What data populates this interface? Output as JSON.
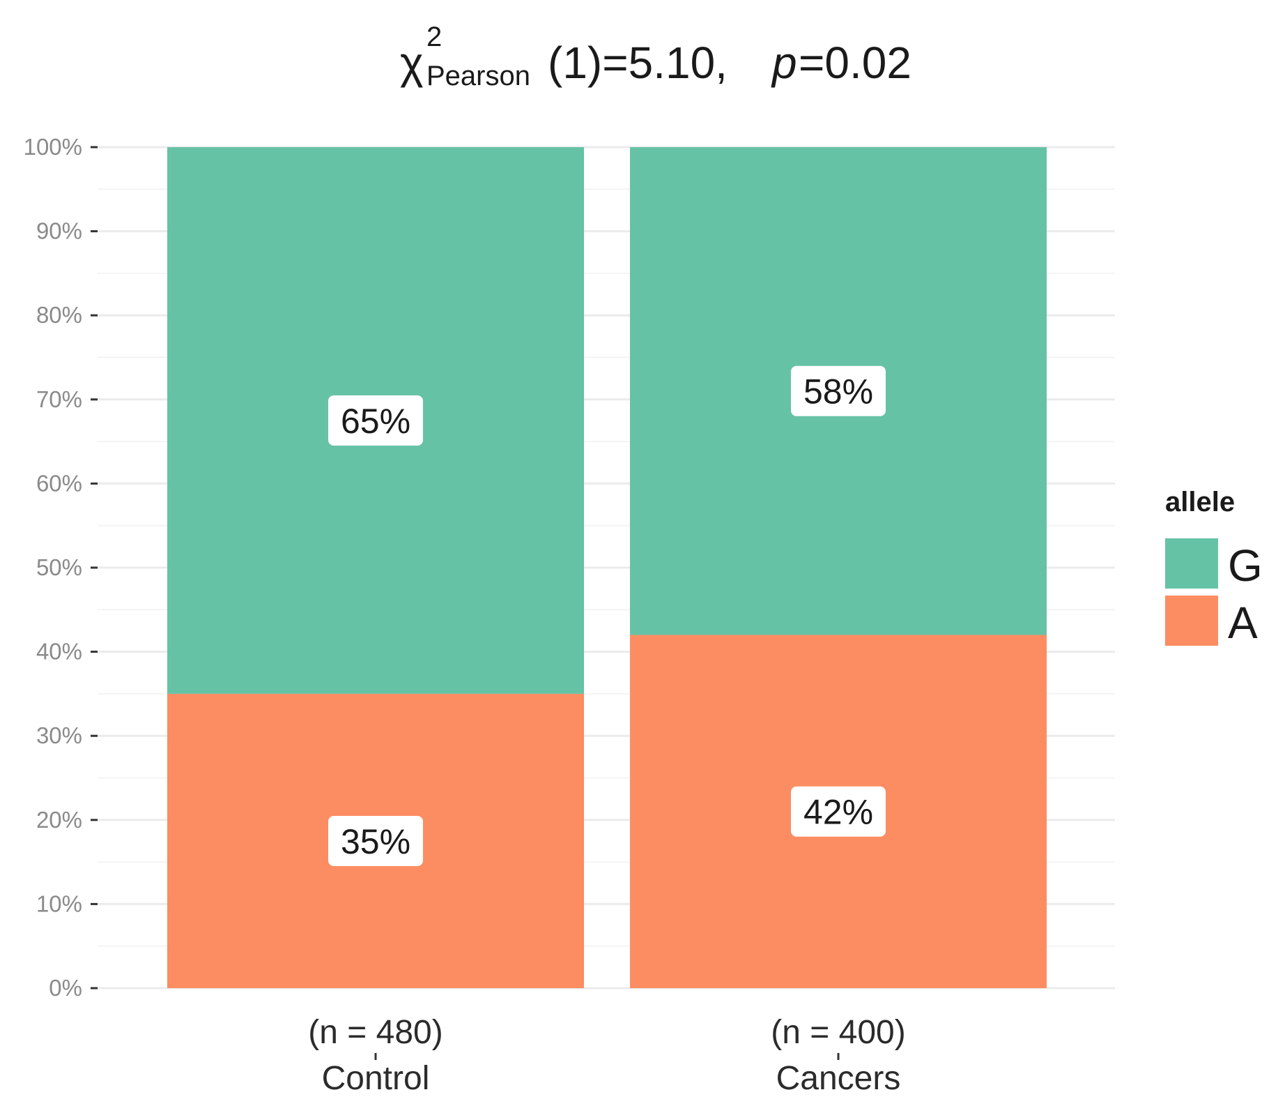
{
  "chart_data": {
    "type": "bar",
    "stacked": true,
    "title": {
      "chi": "χ",
      "sup": "2",
      "sub": "Pearson",
      "rest": "(1)=5.10,",
      "p_symbol": "p",
      "p_rest": "=0.02"
    },
    "categories": [
      "Control",
      "Cancers"
    ],
    "counts": [
      "(n = 480)",
      "(n = 400)"
    ],
    "series": [
      {
        "name": "A",
        "values": [
          35,
          42
        ],
        "labels": [
          "35%",
          "42%"
        ],
        "color": "#FC8D62"
      },
      {
        "name": "G",
        "values": [
          65,
          58
        ],
        "labels": [
          "65%",
          "58%"
        ],
        "color": "#66C2A5"
      }
    ],
    "ylim": [
      0,
      100
    ],
    "yticks": [
      0,
      10,
      20,
      30,
      40,
      50,
      60,
      70,
      80,
      90,
      100
    ],
    "ytick_labels": [
      "0%",
      "10%",
      "20%",
      "30%",
      "40%",
      "50%",
      "60%",
      "70%",
      "80%",
      "90%",
      "100%"
    ],
    "grid": true,
    "legend": {
      "title": "allele",
      "position": "right",
      "entries": [
        "G",
        "A"
      ]
    }
  }
}
